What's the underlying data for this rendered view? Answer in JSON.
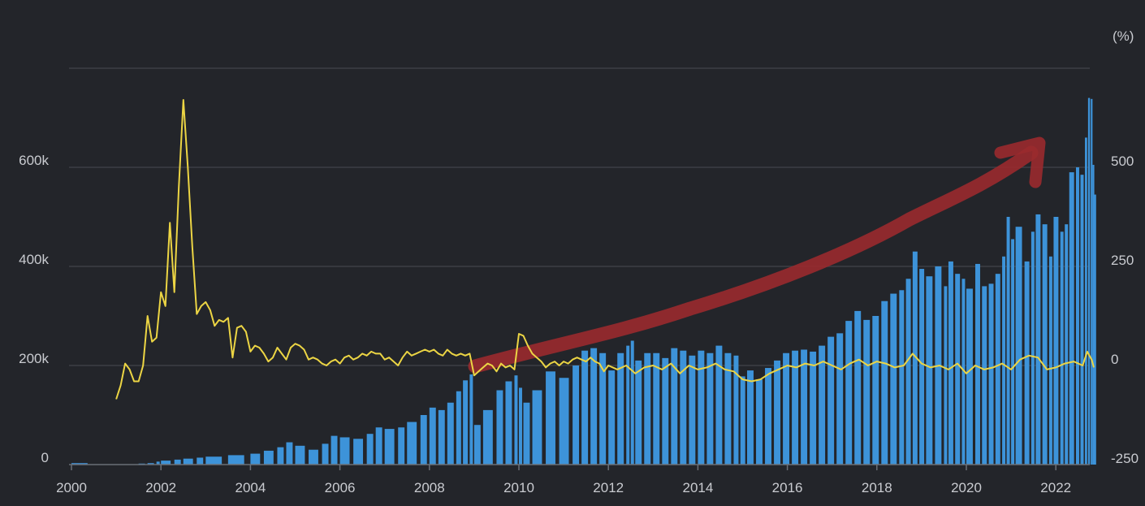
{
  "chart_data": {
    "type": "bar",
    "combo_line_series": true,
    "x_tick_labels": [
      "2000",
      "2002",
      "2004",
      "2006",
      "2008",
      "2010",
      "2012",
      "2014",
      "2016",
      "2018",
      "2020",
      "2022"
    ],
    "x_range": [
      2000.0,
      2022.85
    ],
    "y_left": {
      "tick_labels": [
        "0",
        "200k",
        "400k",
        "600k"
      ],
      "ticks": [
        0,
        200000,
        400000,
        600000
      ],
      "range": [
        0,
        800000
      ]
    },
    "y_right": {
      "unit_label": "(%)",
      "tick_labels": [
        "-250",
        "0",
        "250",
        "500"
      ],
      "ticks": [
        -250,
        0,
        250,
        500
      ],
      "range": [
        -250,
        750
      ]
    },
    "grid": "horizontal",
    "colors": {
      "background": "#23252a",
      "bars": "#3d93d9",
      "line": "#ecd544",
      "grid": "#3c3f45",
      "arrow": "#9a2a2e",
      "text": "#c9cbd0"
    },
    "annotation": "hand-drawn red arrow pointing up-right (upward trend)",
    "series": [
      {
        "kind": "bar",
        "axis": "left",
        "points": [
          [
            2000.0,
            3000
          ],
          [
            2000.5,
            0
          ],
          [
            2001.0,
            0
          ],
          [
            2001.2,
            0
          ],
          [
            2001.5,
            2000
          ],
          [
            2001.7,
            3000
          ],
          [
            2001.9,
            6000
          ],
          [
            2002.0,
            8000
          ],
          [
            2002.3,
            10000
          ],
          [
            2002.5,
            12000
          ],
          [
            2002.8,
            14000
          ],
          [
            2003.0,
            16000
          ],
          [
            2003.5,
            19000
          ],
          [
            2004.0,
            22000
          ],
          [
            2004.3,
            28000
          ],
          [
            2004.6,
            35000
          ],
          [
            2004.8,
            45000
          ],
          [
            2005.0,
            38000
          ],
          [
            2005.3,
            30000
          ],
          [
            2005.6,
            42000
          ],
          [
            2005.8,
            58000
          ],
          [
            2006.0,
            55000
          ],
          [
            2006.3,
            52000
          ],
          [
            2006.6,
            62000
          ],
          [
            2006.8,
            75000
          ],
          [
            2007.0,
            72000
          ],
          [
            2007.3,
            75000
          ],
          [
            2007.5,
            86000
          ],
          [
            2007.8,
            100000
          ],
          [
            2008.0,
            115000
          ],
          [
            2008.2,
            110000
          ],
          [
            2008.4,
            125000
          ],
          [
            2008.6,
            148000
          ],
          [
            2008.75,
            170000
          ],
          [
            2008.9,
            182000
          ],
          [
            2009.0,
            80000
          ],
          [
            2009.2,
            110000
          ],
          [
            2009.5,
            150000
          ],
          [
            2009.7,
            168000
          ],
          [
            2009.9,
            180000
          ],
          [
            2010.0,
            155000
          ],
          [
            2010.1,
            125000
          ],
          [
            2010.3,
            150000
          ],
          [
            2010.6,
            188000
          ],
          [
            2010.9,
            175000
          ],
          [
            2011.2,
            200000
          ],
          [
            2011.4,
            230000
          ],
          [
            2011.6,
            235000
          ],
          [
            2011.8,
            225000
          ],
          [
            2012.0,
            190000
          ],
          [
            2012.2,
            225000
          ],
          [
            2012.4,
            240000
          ],
          [
            2012.5,
            250000
          ],
          [
            2012.6,
            210000
          ],
          [
            2012.8,
            225000
          ],
          [
            2013.0,
            225000
          ],
          [
            2013.2,
            215000
          ],
          [
            2013.4,
            235000
          ],
          [
            2013.6,
            230000
          ],
          [
            2013.8,
            220000
          ],
          [
            2014.0,
            230000
          ],
          [
            2014.2,
            225000
          ],
          [
            2014.4,
            240000
          ],
          [
            2014.6,
            225000
          ],
          [
            2014.8,
            220000
          ],
          [
            2014.95,
            178000
          ],
          [
            2015.1,
            190000
          ],
          [
            2015.3,
            172000
          ],
          [
            2015.5,
            195000
          ],
          [
            2015.7,
            210000
          ],
          [
            2015.9,
            225000
          ],
          [
            2016.1,
            230000
          ],
          [
            2016.3,
            232000
          ],
          [
            2016.5,
            228000
          ],
          [
            2016.7,
            240000
          ],
          [
            2016.9,
            258000
          ],
          [
            2017.1,
            265000
          ],
          [
            2017.3,
            290000
          ],
          [
            2017.5,
            310000
          ],
          [
            2017.7,
            292000
          ],
          [
            2017.9,
            300000
          ],
          [
            2018.1,
            330000
          ],
          [
            2018.3,
            345000
          ],
          [
            2018.5,
            352000
          ],
          [
            2018.65,
            375000
          ],
          [
            2018.8,
            430000
          ],
          [
            2018.95,
            395000
          ],
          [
            2019.1,
            380000
          ],
          [
            2019.3,
            400000
          ],
          [
            2019.5,
            360000
          ],
          [
            2019.6,
            410000
          ],
          [
            2019.75,
            385000
          ],
          [
            2019.9,
            375000
          ],
          [
            2020.0,
            355000
          ],
          [
            2020.2,
            405000
          ],
          [
            2020.35,
            360000
          ],
          [
            2020.5,
            365000
          ],
          [
            2020.65,
            385000
          ],
          [
            2020.8,
            420000
          ],
          [
            2020.9,
            500000
          ],
          [
            2021.0,
            455000
          ],
          [
            2021.1,
            480000
          ],
          [
            2021.3,
            410000
          ],
          [
            2021.45,
            470000
          ],
          [
            2021.55,
            505000
          ],
          [
            2021.7,
            485000
          ],
          [
            2021.85,
            420000
          ],
          [
            2021.95,
            500000
          ],
          [
            2022.1,
            470000
          ],
          [
            2022.2,
            485000
          ],
          [
            2022.3,
            590000
          ],
          [
            2022.45,
            600000
          ],
          [
            2022.55,
            585000
          ],
          [
            2022.65,
            660000
          ],
          [
            2022.72,
            740000
          ],
          [
            2022.78,
            738000
          ],
          [
            2022.82,
            605000
          ],
          [
            2022.85,
            545000
          ]
        ]
      },
      {
        "kind": "line",
        "axis": "right",
        "points": [
          [
            2001.0,
            -85
          ],
          [
            2001.1,
            -50
          ],
          [
            2001.2,
            5
          ],
          [
            2001.3,
            -10
          ],
          [
            2001.4,
            -40
          ],
          [
            2001.5,
            -40
          ],
          [
            2001.6,
            0
          ],
          [
            2001.7,
            125
          ],
          [
            2001.8,
            60
          ],
          [
            2001.9,
            70
          ],
          [
            2002.0,
            185
          ],
          [
            2002.1,
            150
          ],
          [
            2002.2,
            360
          ],
          [
            2002.3,
            185
          ],
          [
            2002.4,
            450
          ],
          [
            2002.5,
            670
          ],
          [
            2002.6,
            500
          ],
          [
            2002.7,
            300
          ],
          [
            2002.8,
            130
          ],
          [
            2002.9,
            150
          ],
          [
            2003.0,
            160
          ],
          [
            2003.1,
            140
          ],
          [
            2003.2,
            100
          ],
          [
            2003.3,
            115
          ],
          [
            2003.4,
            110
          ],
          [
            2003.5,
            120
          ],
          [
            2003.6,
            20
          ],
          [
            2003.7,
            95
          ],
          [
            2003.8,
            100
          ],
          [
            2003.9,
            85
          ],
          [
            2004.0,
            35
          ],
          [
            2004.1,
            50
          ],
          [
            2004.2,
            45
          ],
          [
            2004.3,
            30
          ],
          [
            2004.4,
            10
          ],
          [
            2004.5,
            20
          ],
          [
            2004.6,
            45
          ],
          [
            2004.7,
            30
          ],
          [
            2004.8,
            15
          ],
          [
            2004.9,
            45
          ],
          [
            2005.0,
            55
          ],
          [
            2005.1,
            50
          ],
          [
            2005.2,
            40
          ],
          [
            2005.3,
            15
          ],
          [
            2005.4,
            20
          ],
          [
            2005.5,
            15
          ],
          [
            2005.6,
            5
          ],
          [
            2005.7,
            0
          ],
          [
            2005.8,
            10
          ],
          [
            2005.9,
            15
          ],
          [
            2006.0,
            5
          ],
          [
            2006.1,
            20
          ],
          [
            2006.2,
            25
          ],
          [
            2006.3,
            15
          ],
          [
            2006.4,
            20
          ],
          [
            2006.5,
            30
          ],
          [
            2006.6,
            25
          ],
          [
            2006.7,
            35
          ],
          [
            2006.8,
            30
          ],
          [
            2006.9,
            30
          ],
          [
            2007.0,
            15
          ],
          [
            2007.1,
            20
          ],
          [
            2007.2,
            10
          ],
          [
            2007.3,
            0
          ],
          [
            2007.4,
            20
          ],
          [
            2007.5,
            35
          ],
          [
            2007.6,
            25
          ],
          [
            2007.7,
            30
          ],
          [
            2007.8,
            35
          ],
          [
            2007.9,
            40
          ],
          [
            2008.0,
            35
          ],
          [
            2008.1,
            40
          ],
          [
            2008.2,
            30
          ],
          [
            2008.3,
            25
          ],
          [
            2008.4,
            40
          ],
          [
            2008.5,
            30
          ],
          [
            2008.6,
            25
          ],
          [
            2008.7,
            30
          ],
          [
            2008.8,
            25
          ],
          [
            2008.9,
            30
          ],
          [
            2009.0,
            -25
          ],
          [
            2009.1,
            -15
          ],
          [
            2009.2,
            -5
          ],
          [
            2009.3,
            5
          ],
          [
            2009.4,
            0
          ],
          [
            2009.5,
            -15
          ],
          [
            2009.6,
            5
          ],
          [
            2009.7,
            -5
          ],
          [
            2009.8,
            0
          ],
          [
            2009.9,
            -10
          ],
          [
            2010.0,
            80
          ],
          [
            2010.1,
            75
          ],
          [
            2010.2,
            50
          ],
          [
            2010.3,
            30
          ],
          [
            2010.4,
            20
          ],
          [
            2010.5,
            10
          ],
          [
            2010.6,
            -5
          ],
          [
            2010.7,
            5
          ],
          [
            2010.8,
            10
          ],
          [
            2010.9,
            0
          ],
          [
            2011.0,
            10
          ],
          [
            2011.1,
            5
          ],
          [
            2011.2,
            15
          ],
          [
            2011.3,
            20
          ],
          [
            2011.4,
            15
          ],
          [
            2011.5,
            10
          ],
          [
            2011.6,
            20
          ],
          [
            2011.7,
            10
          ],
          [
            2011.8,
            5
          ],
          [
            2011.9,
            -15
          ],
          [
            2012.0,
            0
          ],
          [
            2012.2,
            -10
          ],
          [
            2012.4,
            0
          ],
          [
            2012.6,
            -20
          ],
          [
            2012.8,
            -5
          ],
          [
            2013.0,
            0
          ],
          [
            2013.2,
            -10
          ],
          [
            2013.4,
            5
          ],
          [
            2013.6,
            -20
          ],
          [
            2013.8,
            0
          ],
          [
            2014.0,
            -10
          ],
          [
            2014.2,
            -5
          ],
          [
            2014.4,
            5
          ],
          [
            2014.6,
            -10
          ],
          [
            2014.8,
            -15
          ],
          [
            2014.9,
            -25
          ],
          [
            2015.0,
            -35
          ],
          [
            2015.2,
            -40
          ],
          [
            2015.4,
            -35
          ],
          [
            2015.6,
            -20
          ],
          [
            2015.8,
            -10
          ],
          [
            2016.0,
            0
          ],
          [
            2016.2,
            -5
          ],
          [
            2016.4,
            5
          ],
          [
            2016.6,
            0
          ],
          [
            2016.8,
            10
          ],
          [
            2017.0,
            0
          ],
          [
            2017.2,
            -10
          ],
          [
            2017.4,
            5
          ],
          [
            2017.6,
            15
          ],
          [
            2017.8,
            0
          ],
          [
            2018.0,
            10
          ],
          [
            2018.2,
            5
          ],
          [
            2018.4,
            -5
          ],
          [
            2018.6,
            0
          ],
          [
            2018.8,
            30
          ],
          [
            2019.0,
            5
          ],
          [
            2019.2,
            -5
          ],
          [
            2019.4,
            0
          ],
          [
            2019.6,
            -10
          ],
          [
            2019.8,
            5
          ],
          [
            2020.0,
            -20
          ],
          [
            2020.2,
            0
          ],
          [
            2020.4,
            -10
          ],
          [
            2020.6,
            -5
          ],
          [
            2020.8,
            5
          ],
          [
            2021.0,
            -10
          ],
          [
            2021.2,
            15
          ],
          [
            2021.4,
            25
          ],
          [
            2021.6,
            20
          ],
          [
            2021.8,
            -10
          ],
          [
            2022.0,
            -5
          ],
          [
            2022.2,
            5
          ],
          [
            2022.4,
            10
          ],
          [
            2022.6,
            0
          ],
          [
            2022.7,
            35
          ],
          [
            2022.8,
            15
          ],
          [
            2022.85,
            -5
          ]
        ]
      }
    ]
  }
}
